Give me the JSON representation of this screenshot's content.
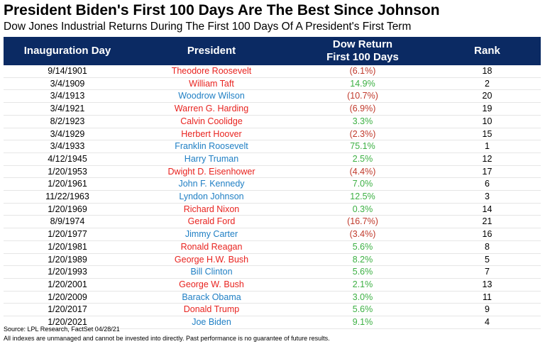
{
  "title": "President Biden's First 100 Days Are The Best Since Johnson",
  "subtitle": "Dow Jones Industrial Returns During The First 100 Days Of A President's First Term",
  "chart_data": {
    "type": "table",
    "columns": [
      "Inauguration Day",
      "President",
      "Dow Return First 100 Days",
      "Rank"
    ],
    "rows": [
      {
        "date": "9/14/1901",
        "president": "Theodore Roosevelt",
        "party": "R",
        "return_text": "(6.1%)",
        "return": -6.1,
        "rank": "18"
      },
      {
        "date": "3/4/1909",
        "president": "William Taft",
        "party": "R",
        "return_text": "14.9%",
        "return": 14.9,
        "rank": "2"
      },
      {
        "date": "3/4/1913",
        "president": "Woodrow Wilson",
        "party": "D",
        "return_text": "(10.7%)",
        "return": -10.7,
        "rank": "20"
      },
      {
        "date": "3/4/1921",
        "president": "Warren G. Harding",
        "party": "R",
        "return_text": "(6.9%)",
        "return": -6.9,
        "rank": "19"
      },
      {
        "date": "8/2/1923",
        "president": "Calvin Coolidge",
        "party": "R",
        "return_text": "3.3%",
        "return": 3.3,
        "rank": "10"
      },
      {
        "date": "3/4/1929",
        "president": "Herbert Hoover",
        "party": "R",
        "return_text": "(2.3%)",
        "return": -2.3,
        "rank": "15"
      },
      {
        "date": "3/4/1933",
        "president": "Franklin Roosevelt",
        "party": "D",
        "return_text": "75.1%",
        "return": 75.1,
        "rank": "1"
      },
      {
        "date": "4/12/1945",
        "president": "Harry Truman",
        "party": "D",
        "return_text": "2.5%",
        "return": 2.5,
        "rank": "12"
      },
      {
        "date": "1/20/1953",
        "president": "Dwight D. Eisenhower",
        "party": "R",
        "return_text": "(4.4%)",
        "return": -4.4,
        "rank": "17"
      },
      {
        "date": "1/20/1961",
        "president": "John F. Kennedy",
        "party": "D",
        "return_text": "7.0%",
        "return": 7.0,
        "rank": "6"
      },
      {
        "date": "11/22/1963",
        "president": "Lyndon Johnson",
        "party": "D",
        "return_text": "12.5%",
        "return": 12.5,
        "rank": "3"
      },
      {
        "date": "1/20/1969",
        "president": "Richard Nixon",
        "party": "R",
        "return_text": "0.3%",
        "return": 0.3,
        "rank": "14"
      },
      {
        "date": "8/9/1974",
        "president": "Gerald Ford",
        "party": "R",
        "return_text": "(16.7%)",
        "return": -16.7,
        "rank": "21"
      },
      {
        "date": "1/20/1977",
        "president": "Jimmy Carter",
        "party": "D",
        "return_text": "(3.4%)",
        "return": -3.4,
        "rank": "16"
      },
      {
        "date": "1/20/1981",
        "president": "Ronald Reagan",
        "party": "R",
        "return_text": "5.6%",
        "return": 5.6,
        "rank": "8"
      },
      {
        "date": "1/20/1989",
        "president": "George H.W. Bush",
        "party": "R",
        "return_text": "8.2%",
        "return": 8.2,
        "rank": "5"
      },
      {
        "date": "1/20/1993",
        "president": "Bill Clinton",
        "party": "D",
        "return_text": "5.6%",
        "return": 5.6,
        "rank": "7"
      },
      {
        "date": "1/20/2001",
        "president": "George W. Bush",
        "party": "R",
        "return_text": "2.1%",
        "return": 2.1,
        "rank": "13"
      },
      {
        "date": "1/20/2009",
        "president": "Barack Obama",
        "party": "D",
        "return_text": "3.0%",
        "return": 3.0,
        "rank": "11"
      },
      {
        "date": "1/20/2017",
        "president": "Donald Trump",
        "party": "R",
        "return_text": "5.6%",
        "return": 5.6,
        "rank": "9"
      },
      {
        "date": "1/20/2021",
        "president": "Joe Biden",
        "party": "D",
        "return_text": "9.1%",
        "return": 9.1,
        "rank": "4"
      }
    ]
  },
  "colors": {
    "header_bg": "#0b2a63",
    "republican": "#e8231f",
    "democrat": "#1f7fc4",
    "positive": "#3cb043",
    "negative": "#c0392b"
  },
  "footer": {
    "source": "Source: LPL Research, FactSet 04/28/21",
    "disclaimer": "All indexes are unmanaged and cannot be invested into directly. Past performance is no guarantee of future results."
  }
}
